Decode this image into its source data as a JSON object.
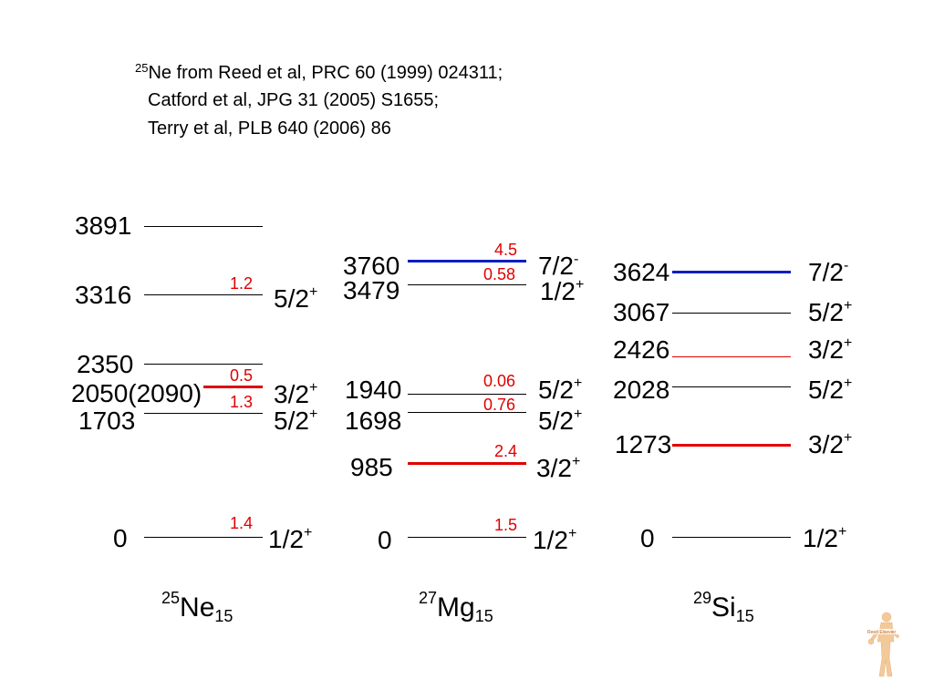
{
  "reference": {
    "mass": "25",
    "line1": "Ne from Reed et al, PRC 60 (1999) 024311;",
    "line2": "Catford et al, JPG 31 (2005) S1655;",
    "line3": "Terry et al, PLB 640 (2006) 86"
  },
  "ne": {
    "mass": "25",
    "symbol": "Ne",
    "n": "15",
    "e3891": "3891",
    "e3316": "3316",
    "e2350": "2350",
    "e2050": "2050(2090)",
    "e1703": "1703",
    "e0": "0",
    "j3316": "5/2",
    "p3316": "+",
    "j2050": "3/2",
    "p2050": "+",
    "j1703": "5/2",
    "p1703": "+",
    "j0": "1/2",
    "p0": "+",
    "s3316": "1.2",
    "s2350": "0.5",
    "s2050": "1.3",
    "s0": "1.4"
  },
  "mg": {
    "mass": "27",
    "symbol": "Mg",
    "n": "15",
    "e3760": "3760",
    "e3479": "3479",
    "e1940": "1940",
    "e1698": "1698",
    "e985": "985",
    "e0": "0",
    "j3760": "7/2",
    "p3760": "-",
    "j3479": "1/2",
    "p3479": "+",
    "j1940": "5/2",
    "p1940": "+",
    "j1698": "5/2",
    "p1698": "+",
    "j985": "3/2",
    "p985": "+",
    "j0": "1/2",
    "p0": "+",
    "s3760": "4.5",
    "s3479": "0.58",
    "s1940": "0.06",
    "s1698": "0.76",
    "s985": "2.4",
    "s0": "1.5"
  },
  "si": {
    "mass": "29",
    "symbol": "Si",
    "n": "15",
    "e3624": "3624",
    "e3067": "3067",
    "e2426": "2426",
    "e2028": "2028",
    "e1273": "1273",
    "e0": "0",
    "j3624": "7/2",
    "p3624": "-",
    "j3067": "5/2",
    "p3067": "+",
    "j2426": "3/2",
    "p2426": "+",
    "j2028": "5/2",
    "p2028": "+",
    "j1273": "3/2",
    "p1273": "+",
    "j0": "1/2",
    "p0": "+"
  },
  "colors": {
    "highlight_red": "#e00000",
    "highlight_blue": "#0a1fbf",
    "line": "#000000"
  },
  "logo": {
    "name": "Reed Elsevier",
    "icon": "figure-logo-icon"
  }
}
